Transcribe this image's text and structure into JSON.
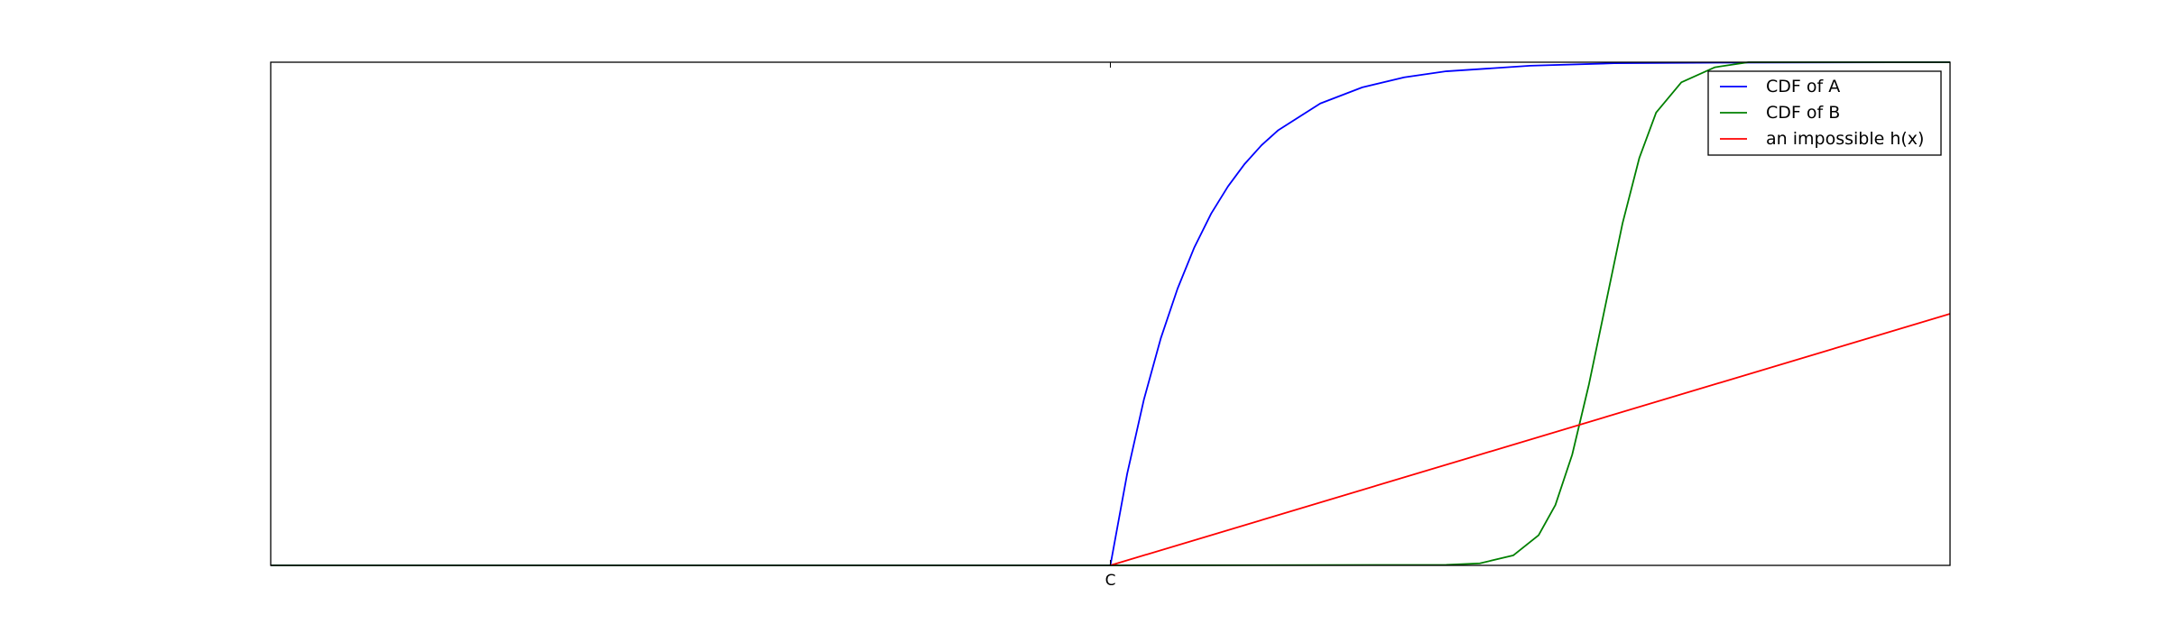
{
  "chart_data": {
    "type": "line",
    "title": "",
    "xlabel": "",
    "ylabel": "",
    "xlim": [
      -1,
      1
    ],
    "ylim": [
      0,
      1
    ],
    "grid": false,
    "legend_location": "upper right",
    "x_ticks": [
      {
        "value": 0,
        "label": "C"
      }
    ],
    "series": [
      {
        "name": "CDF of A",
        "color": "#0000ff",
        "x": [
          -1,
          0,
          0.02,
          0.04,
          0.06,
          0.08,
          0.1,
          0.12,
          0.14,
          0.16,
          0.18,
          0.2,
          0.25,
          0.3,
          0.35,
          0.4,
          0.5,
          0.6,
          0.7,
          1
        ],
        "y": [
          0,
          0,
          0.182,
          0.33,
          0.451,
          0.55,
          0.632,
          0.699,
          0.753,
          0.798,
          0.835,
          0.865,
          0.918,
          0.95,
          0.97,
          0.982,
          0.993,
          0.998,
          0.999,
          1
        ]
      },
      {
        "name": "CDF of B",
        "color": "#008000",
        "x": [
          -1,
          0,
          0.4,
          0.44,
          0.48,
          0.51,
          0.53,
          0.55,
          0.57,
          0.59,
          0.61,
          0.63,
          0.65,
          0.68,
          0.72,
          0.76,
          1
        ],
        "y": [
          0,
          0,
          0.001,
          0.004,
          0.02,
          0.06,
          0.12,
          0.22,
          0.36,
          0.52,
          0.68,
          0.81,
          0.9,
          0.96,
          0.99,
          1,
          1
        ]
      },
      {
        "name": "an impossible h(x)",
        "color": "#ff0000",
        "x": [
          0,
          1
        ],
        "y": [
          0,
          0.5
        ]
      }
    ]
  }
}
